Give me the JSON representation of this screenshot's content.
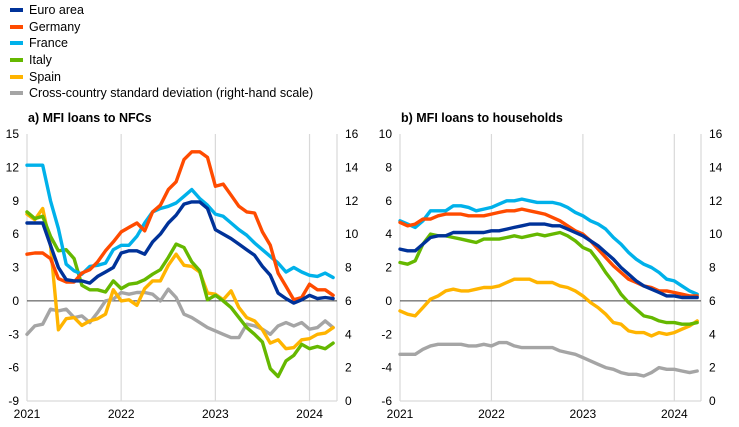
{
  "legend": [
    {
      "label": "Euro area",
      "color": "#003299"
    },
    {
      "label": "Germany",
      "color": "#ff4b00"
    },
    {
      "label": "France",
      "color": "#00b1ea"
    },
    {
      "label": "Italy",
      "color": "#65b800"
    },
    {
      "label": "Spain",
      "color": "#ffb400"
    },
    {
      "label": "Cross-country standard deviation (right-hand scale)",
      "color": "#a5a5a5"
    }
  ],
  "chart_data": [
    {
      "type": "line",
      "title": "a) MFI loans to NFCs",
      "x_start": "2021-01",
      "x_end": "2024-04",
      "frequency": "monthly",
      "xticks": [
        "2021",
        "2022",
        "2023",
        "2024"
      ],
      "ylim": [
        -9,
        15
      ],
      "yticks": [
        "15",
        "12",
        "9",
        "6",
        "3",
        "0",
        "-3",
        "-6",
        "-9"
      ],
      "y2lim": [
        0,
        16
      ],
      "y2ticks": [
        "16",
        "14",
        "12",
        "10",
        "8",
        "6",
        "4",
        "2",
        "0"
      ],
      "series": [
        {
          "name": "Euro area",
          "axis": "left",
          "values": [
            7.0,
            7.0,
            7.0,
            5.0,
            3.0,
            1.9,
            1.8,
            1.8,
            1.6,
            2.2,
            2.6,
            3.0,
            4.3,
            4.5,
            4.5,
            4.2,
            5.3,
            6.0,
            7.0,
            7.7,
            8.7,
            8.9,
            8.9,
            8.3,
            6.4,
            6.0,
            5.6,
            5.1,
            4.6,
            4.1,
            3.1,
            2.3,
            0.7,
            0.2,
            -0.2,
            0.1,
            0.5,
            0.2,
            0.3,
            0.2
          ]
        },
        {
          "name": "Germany",
          "axis": "left",
          "values": [
            4.2,
            4.3,
            4.3,
            3.8,
            2.0,
            1.7,
            1.7,
            2.5,
            2.8,
            3.5,
            4.5,
            5.3,
            6.2,
            6.6,
            7.0,
            6.3,
            8.0,
            8.6,
            10.0,
            10.7,
            12.7,
            13.4,
            13.4,
            12.9,
            10.3,
            10.5,
            9.5,
            8.5,
            8.0,
            7.9,
            6.2,
            5.0,
            2.5,
            1.3,
            0.1,
            0.3,
            1.5,
            1.0,
            1.0,
            0.5
          ]
        },
        {
          "name": "France",
          "axis": "left",
          "values": [
            12.2,
            12.2,
            12.2,
            9.0,
            6.5,
            3.3,
            2.7,
            2.4,
            3.1,
            3.2,
            3.4,
            4.6,
            5.0,
            5.0,
            5.8,
            7.0,
            8.0,
            8.3,
            8.5,
            8.8,
            9.4,
            10.0,
            9.2,
            8.6,
            7.8,
            7.6,
            7.0,
            6.4,
            5.9,
            5.2,
            4.6,
            4.0,
            3.4,
            2.6,
            3.0,
            2.6,
            2.3,
            2.2,
            2.5,
            2.1
          ]
        },
        {
          "name": "Italy",
          "axis": "left",
          "values": [
            8.0,
            7.4,
            7.6,
            5.8,
            4.5,
            4.6,
            3.8,
            1.4,
            1.0,
            1.0,
            0.8,
            1.8,
            1.1,
            1.5,
            1.6,
            1.9,
            2.4,
            2.8,
            3.9,
            5.1,
            4.8,
            3.5,
            2.7,
            0.1,
            0.5,
            0.0,
            -0.6,
            -1.5,
            -2.4,
            -3.0,
            -3.7,
            -6.1,
            -6.8,
            -5.4,
            -4.9,
            -3.9,
            -4.3,
            -4.1,
            -4.3,
            -3.8
          ]
        },
        {
          "name": "Spain",
          "axis": "left",
          "values": [
            7.8,
            7.3,
            8.3,
            5.0,
            -2.6,
            -1.6,
            -1.5,
            -2.2,
            -1.8,
            -1.6,
            -1.2,
            1.0,
            0.0,
            0.1,
            -0.4,
            1.1,
            1.8,
            1.8,
            3.2,
            4.2,
            3.2,
            3.1,
            2.6,
            0.7,
            0.6,
            0.1,
            0.9,
            -0.6,
            -1.5,
            -1.8,
            -2.6,
            -3.8,
            -3.5,
            -4.3,
            -4.2,
            -3.5,
            -3.4,
            -3.0,
            -2.9,
            -2.4
          ]
        },
        {
          "name": "Cross-country standard deviation (right-hand scale)",
          "axis": "right",
          "values": [
            4.0,
            4.5,
            4.6,
            5.5,
            5.4,
            5.5,
            5.0,
            5.1,
            4.7,
            5.3,
            6.0,
            6.1,
            6.5,
            6.4,
            6.5,
            6.5,
            6.4,
            6.0,
            6.7,
            6.2,
            5.2,
            5.0,
            4.7,
            4.4,
            4.2,
            4.0,
            3.8,
            3.8,
            4.6,
            4.5,
            4.3,
            4.0,
            4.5,
            4.7,
            4.5,
            4.7,
            4.3,
            4.4,
            4.8,
            4.4
          ]
        }
      ]
    },
    {
      "type": "line",
      "title": "b) MFI loans to households",
      "x_start": "2021-01",
      "x_end": "2024-04",
      "frequency": "monthly",
      "xticks": [
        "2021",
        "2022",
        "2023",
        "2024"
      ],
      "ylim": [
        -6,
        10
      ],
      "yticks": [
        "10",
        "8",
        "6",
        "4",
        "2",
        "0",
        "-2",
        "-4",
        "-6"
      ],
      "y2lim": [
        0,
        16
      ],
      "y2ticks": [
        "16",
        "14",
        "12",
        "10",
        "8",
        "6",
        "4",
        "2",
        "0"
      ],
      "series": [
        {
          "name": "Euro area",
          "axis": "left",
          "values": [
            3.1,
            3.0,
            3.0,
            3.4,
            3.8,
            3.9,
            3.9,
            4.1,
            4.1,
            4.1,
            4.1,
            4.1,
            4.2,
            4.2,
            4.3,
            4.4,
            4.5,
            4.6,
            4.6,
            4.6,
            4.5,
            4.5,
            4.3,
            4.1,
            3.9,
            3.6,
            3.3,
            2.9,
            2.5,
            2.0,
            1.6,
            1.2,
            0.9,
            0.7,
            0.5,
            0.3,
            0.3,
            0.2,
            0.2,
            0.2
          ]
        },
        {
          "name": "Germany",
          "axis": "left",
          "values": [
            4.7,
            4.5,
            4.6,
            4.9,
            4.9,
            5.1,
            5.2,
            5.2,
            5.2,
            5.1,
            5.1,
            5.1,
            5.2,
            5.3,
            5.4,
            5.4,
            5.5,
            5.4,
            5.3,
            5.2,
            5.0,
            4.8,
            4.5,
            4.2,
            4.0,
            3.6,
            3.1,
            2.6,
            2.1,
            1.7,
            1.3,
            1.1,
            0.9,
            0.8,
            0.6,
            0.6,
            0.5,
            0.4,
            0.3,
            0.3
          ]
        },
        {
          "name": "France",
          "axis": "left",
          "values": [
            4.8,
            4.6,
            4.4,
            4.8,
            5.4,
            5.4,
            5.4,
            5.7,
            5.7,
            5.6,
            5.4,
            5.5,
            5.6,
            5.8,
            6.0,
            6.0,
            6.1,
            6.0,
            5.9,
            5.9,
            5.9,
            5.8,
            5.6,
            5.3,
            5.1,
            4.8,
            4.6,
            4.3,
            3.8,
            3.4,
            2.9,
            2.5,
            2.2,
            2.0,
            1.7,
            1.3,
            1.2,
            0.9,
            0.6,
            0.4
          ]
        },
        {
          "name": "Italy",
          "axis": "left",
          "values": [
            2.3,
            2.2,
            2.4,
            3.4,
            4.0,
            3.9,
            3.9,
            3.8,
            3.7,
            3.6,
            3.5,
            3.7,
            3.7,
            3.7,
            3.8,
            3.9,
            3.8,
            3.9,
            4.0,
            3.9,
            4.0,
            4.1,
            3.9,
            3.6,
            3.2,
            3.0,
            2.4,
            1.7,
            1.1,
            0.4,
            -0.1,
            -0.5,
            -0.9,
            -1.0,
            -1.2,
            -1.3,
            -1.3,
            -1.4,
            -1.4,
            -1.3
          ]
        },
        {
          "name": "Spain",
          "axis": "left",
          "values": [
            -0.6,
            -0.8,
            -0.9,
            -0.4,
            0.1,
            0.3,
            0.6,
            0.7,
            0.6,
            0.6,
            0.7,
            0.8,
            0.8,
            0.9,
            1.1,
            1.3,
            1.3,
            1.3,
            1.1,
            1.1,
            1.1,
            0.9,
            0.8,
            0.6,
            0.3,
            -0.1,
            -0.4,
            -0.8,
            -1.3,
            -1.4,
            -1.8,
            -1.9,
            -1.9,
            -2.1,
            -1.9,
            -2.0,
            -1.9,
            -1.7,
            -1.5,
            -1.2
          ]
        },
        {
          "name": "Cross-country standard deviation (right-hand scale)",
          "axis": "right",
          "values": [
            2.8,
            2.8,
            2.8,
            3.1,
            3.3,
            3.4,
            3.4,
            3.4,
            3.4,
            3.3,
            3.3,
            3.4,
            3.3,
            3.5,
            3.5,
            3.3,
            3.2,
            3.2,
            3.2,
            3.2,
            3.2,
            3.0,
            2.9,
            2.8,
            2.6,
            2.4,
            2.2,
            2.0,
            1.9,
            1.7,
            1.6,
            1.6,
            1.5,
            1.7,
            2.0,
            1.9,
            1.9,
            1.8,
            1.7,
            1.8
          ]
        }
      ]
    }
  ]
}
